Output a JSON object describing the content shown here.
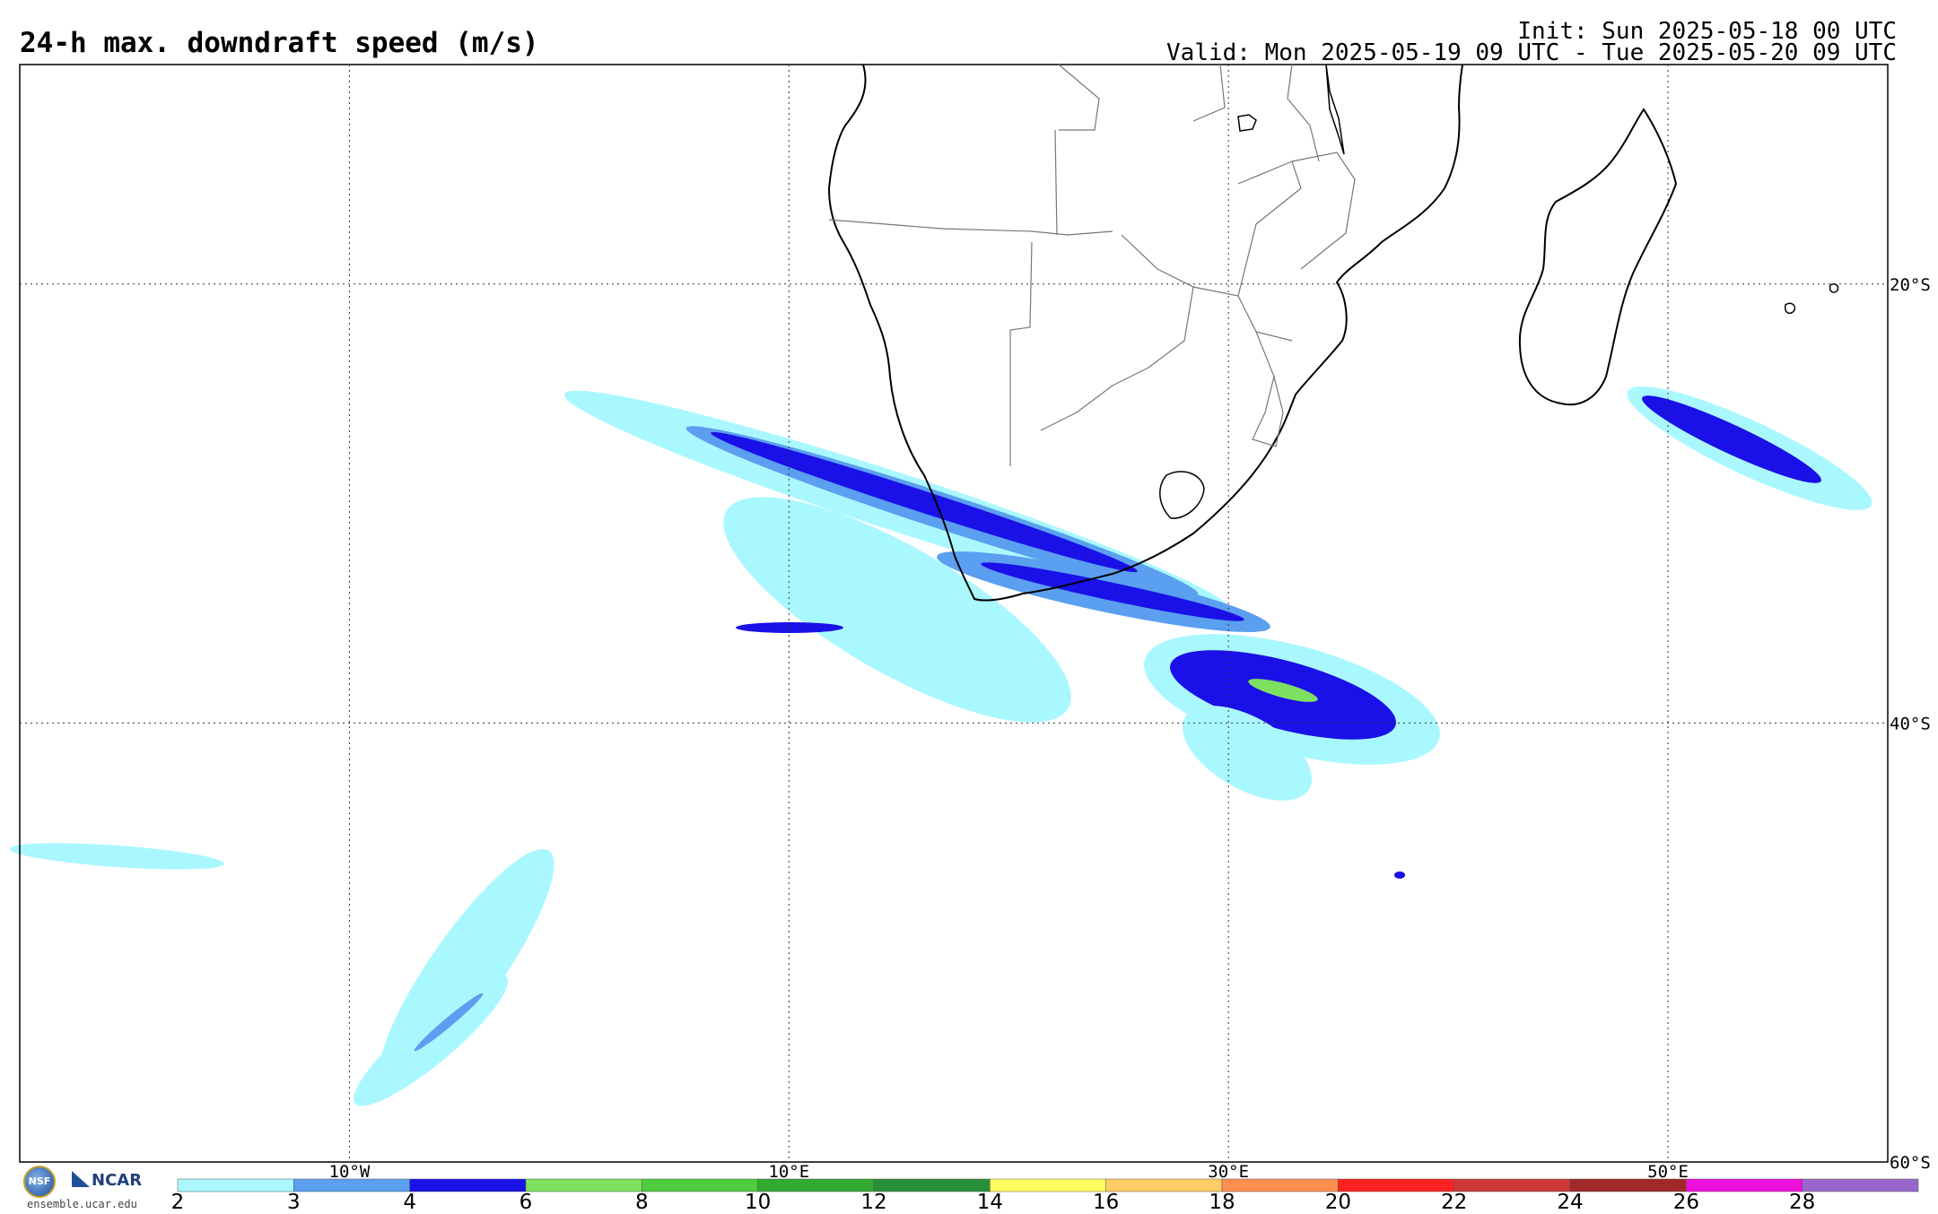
{
  "header": {
    "title": "24-h max. downdraft speed (m/s)",
    "init": "Init: Sun 2025-05-18 00 UTC",
    "valid": "Valid: Mon 2025-05-19 09 UTC - Tue 2025-05-20 09 UTC"
  },
  "map": {
    "projection": "cylindrical",
    "lon_range": [
      -25,
      60
    ],
    "lat_range": [
      -60,
      -10
    ],
    "lon_ticks": [
      {
        "value": -10,
        "label": "10°W"
      },
      {
        "value": 10,
        "label": "10°E"
      },
      {
        "value": 30,
        "label": "30°E"
      },
      {
        "value": 50,
        "label": "50°E"
      }
    ],
    "lat_ticks": [
      {
        "value": -20,
        "label": "20°S"
      },
      {
        "value": -40,
        "label": "40°S"
      },
      {
        "value": -60,
        "label": "60°S"
      }
    ]
  },
  "colorbar": {
    "labels": [
      "2",
      "3",
      "4",
      "6",
      "8",
      "10",
      "12",
      "14",
      "16",
      "18",
      "20",
      "22",
      "24",
      "26",
      "28"
    ],
    "colors": [
      "#aaf8ff",
      "#5a9ff0",
      "#1a10e8",
      "#7ee060",
      "#50cc40",
      "#33aa30",
      "#268f3a",
      "#ffff60",
      "#ffcc66",
      "#ff8f50",
      "#ff2020",
      "#cc3838",
      "#a02828",
      "#ee10dd",
      "#9966cc"
    ]
  },
  "logos": {
    "nsf": "NSF",
    "ncar": "NCAR",
    "site": "ensemble.ucar.edu"
  }
}
